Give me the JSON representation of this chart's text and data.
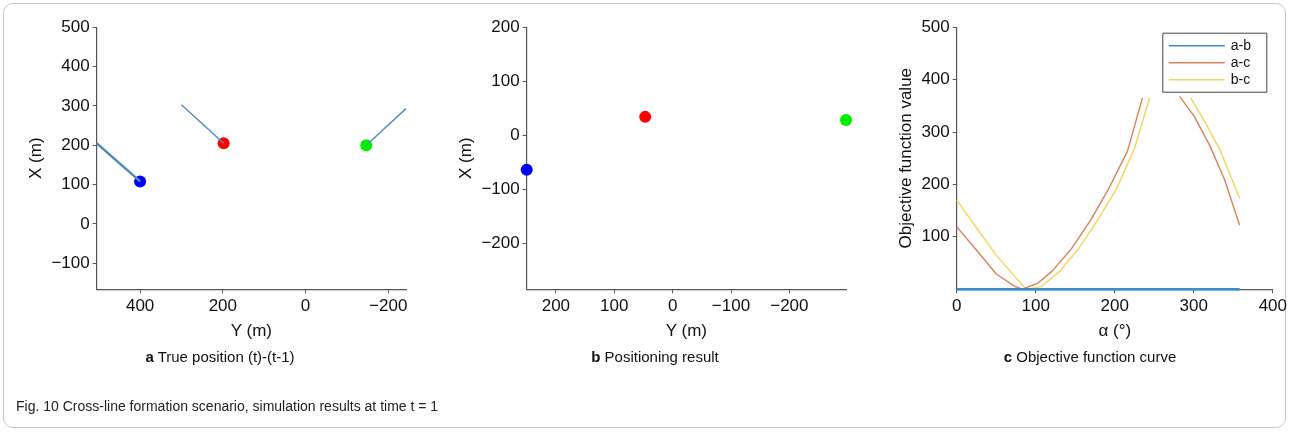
{
  "chart_data": [
    {
      "type": "scatter",
      "title": "a True position (t)-(t-1)",
      "xlabel": "Y (m)",
      "ylabel": "X (m)",
      "marker": "circle",
      "xlim": [
        505,
        -243
      ],
      "xticks": [
        400,
        200,
        0,
        -200
      ],
      "ylim": [
        -166,
        500
      ],
      "yticks": [
        -100,
        0,
        100,
        200,
        300,
        400,
        500
      ],
      "series": [
        {
          "type": "line",
          "marker": "none",
          "color": "#4f8cb8",
          "x": [
            505,
            400
          ],
          "values": [
            205,
            108
          ]
        },
        {
          "type": "line",
          "marker": "none",
          "color": "#4f8cb8",
          "x": [
            300,
            198
          ],
          "values": [
            303,
            205
          ]
        },
        {
          "type": "line",
          "marker": "none",
          "color": "#4f8cb8",
          "x": [
            -243,
            -147
          ],
          "values": [
            293,
            200
          ]
        },
        {
          "color": "#0000ff",
          "x": [
            400
          ],
          "values": [
            108
          ]
        },
        {
          "color": "#ff0000",
          "x": [
            198
          ],
          "values": [
            205
          ]
        },
        {
          "color": "#00ee00",
          "x": [
            -147
          ],
          "values": [
            200
          ]
        }
      ],
      "annotations": [
        "Fig. 10 Cross-line formation scenario, simulation results at time t = 1"
      ]
    },
    {
      "type": "scatter",
      "title": "b Positioning result",
      "xlabel": "Y (m)",
      "ylabel": "X (m)",
      "marker": "circle",
      "xlim": [
        250,
        -297
      ],
      "xticks": [
        200,
        100,
        0,
        -100,
        -200
      ],
      "ylim": [
        -285,
        200
      ],
      "yticks": [
        -200,
        -100,
        0,
        100,
        200
      ],
      "series": [
        {
          "color": "#0000ff",
          "x": [
            250
          ],
          "values": [
            -64
          ]
        },
        {
          "color": "#ff0000",
          "x": [
            47
          ],
          "values": [
            34
          ]
        },
        {
          "color": "#00ee00",
          "x": [
            -297
          ],
          "values": [
            28
          ]
        }
      ]
    },
    {
      "type": "line",
      "title": "c Objective function curve",
      "xlabel": "α (°)",
      "ylabel": "Objective function value",
      "legend": "top right",
      "marker": "none",
      "xlim": [
        0,
        400
      ],
      "xticks": [
        0,
        100,
        200,
        300,
        400
      ],
      "ylim": [
        0,
        500
      ],
      "yticks": [
        100,
        200,
        300,
        400,
        500
      ],
      "series": [
        {
          "name": "a-b",
          "color": "#3b8fd0",
          "x": [
            0,
            358
          ],
          "values": [
            0,
            0
          ]
        },
        {
          "name": "a-c",
          "color": "#d9825b",
          "x": [
            0,
            27,
            50,
            74,
            83,
            102,
            121,
            145,
            169,
            192,
            216,
            235,
            258,
            282,
            301,
            320,
            339,
            358
          ],
          "values": [
            119,
            71,
            29,
            5,
            0,
            11,
            35,
            77,
            131,
            191,
            263,
            365,
            null,
            368,
            329,
            275,
            209,
            122
          ]
        },
        {
          "name": "b-c",
          "color": "#f4d35e",
          "x": [
            0,
            27,
            50,
            74,
            88,
            107,
            131,
            154,
            178,
            202,
            225,
            244,
            270,
            296,
            315,
            334,
            358
          ],
          "values": [
            170,
            113,
            65,
            23,
            0,
            5,
            35,
            77,
            131,
            191,
            269,
            365,
            null,
            365,
            317,
            263,
            173
          ]
        }
      ]
    }
  ]
}
